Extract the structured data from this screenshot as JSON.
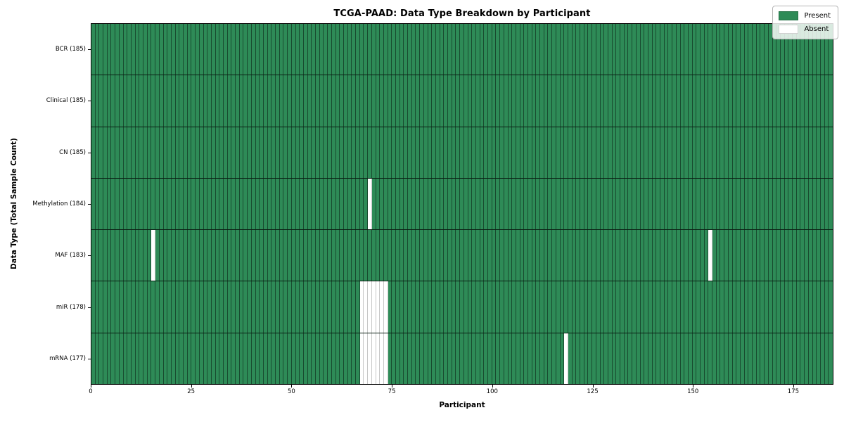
{
  "figure": {
    "title": "TCGA-PAAD: Data Type Breakdown by Participant",
    "xlabel": "Participant",
    "ylabel": "Data Type (Total Sample Count)"
  },
  "legend": {
    "present_label": "Present",
    "absent_label": "Absent"
  },
  "colors": {
    "present": "#2e8b57",
    "absent": "#ffffff",
    "cell_border": "rgba(0,0,0,0.46)",
    "row_border": "rgba(0,0,0,0.78)",
    "plot_border": "#000000",
    "legend_bg": "rgba(255,255,255,0.82)"
  },
  "chart_data": {
    "type": "heatmap",
    "title": "TCGA-PAAD: Data Type Breakdown by Participant",
    "xlabel": "Participant",
    "ylabel": "Data Type (Total Sample Count)",
    "n_participants": 185,
    "x_ticks": [
      0,
      25,
      50,
      75,
      100,
      125,
      150,
      175
    ],
    "xlim": [
      0,
      185
    ],
    "grid": "per-cell vertical lines and per-row horizontal separators",
    "legend_position": "upper right",
    "legend": [
      {
        "label": "Present",
        "color": "#2e8b57"
      },
      {
        "label": "Absent",
        "color": "#ffffff"
      }
    ],
    "value_encoding": {
      "present": 1,
      "absent": 0
    },
    "rows": [
      {
        "data_type": "BCR",
        "label": "BCR (185)",
        "total_samples": 185,
        "absent_participants": []
      },
      {
        "data_type": "Clinical",
        "label": "Clinical (185)",
        "total_samples": 185,
        "absent_participants": []
      },
      {
        "data_type": "CN",
        "label": "CN (185)",
        "total_samples": 185,
        "absent_participants": []
      },
      {
        "data_type": "Methylation",
        "label": "Methylation (184)",
        "total_samples": 184,
        "absent_participants": [
          69
        ]
      },
      {
        "data_type": "MAF",
        "label": "MAF (183)",
        "total_samples": 183,
        "absent_participants": [
          15,
          154
        ]
      },
      {
        "data_type": "miR",
        "label": "miR (178)",
        "total_samples": 178,
        "absent_participants": [
          67,
          68,
          69,
          70,
          71,
          72,
          73
        ]
      },
      {
        "data_type": "mRNA",
        "label": "mRNA (177)",
        "total_samples": 177,
        "absent_participants": [
          67,
          68,
          69,
          70,
          71,
          72,
          73,
          118
        ]
      }
    ]
  }
}
